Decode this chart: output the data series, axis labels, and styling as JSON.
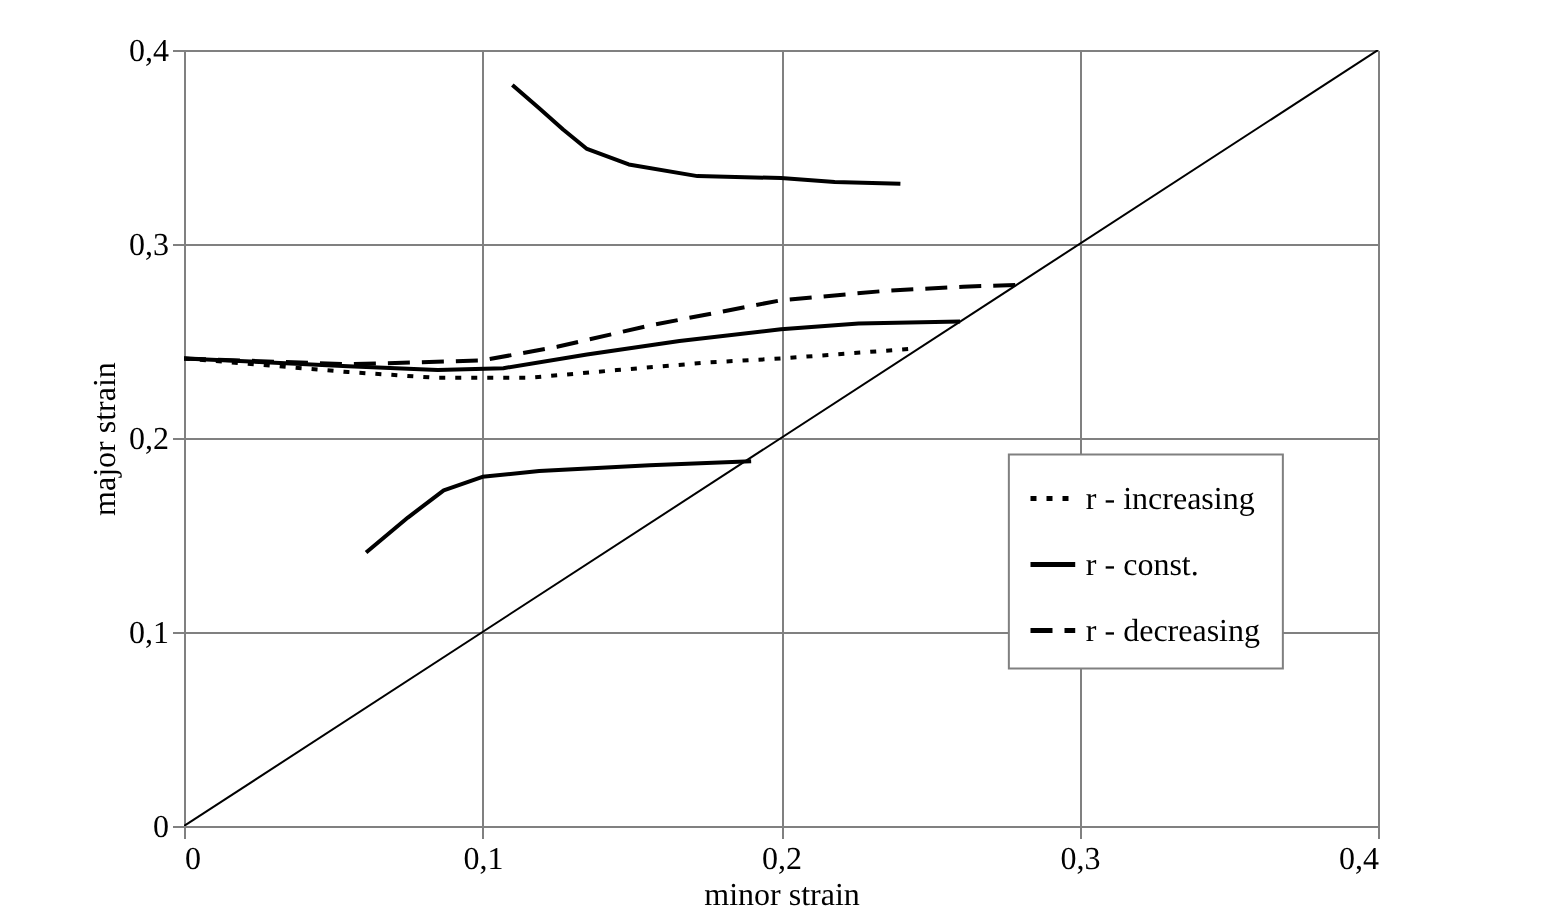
{
  "chart_data": {
    "type": "line",
    "xlabel": "minor strain",
    "ylabel": "major strain",
    "xlim": [
      0,
      0.4
    ],
    "ylim": [
      0,
      0.4
    ],
    "xticks": [
      0,
      {
        "value": 0.1,
        "label": "0,1"
      },
      {
        "value": 0.2,
        "label": "0,2"
      },
      {
        "value": 0.3,
        "label": "0,3"
      },
      {
        "value": 0.4,
        "label": "0,4"
      }
    ],
    "yticks": [
      0,
      {
        "value": 0.1,
        "label": "0,1"
      },
      {
        "value": 0.2,
        "label": "0,2"
      },
      {
        "value": 0.3,
        "label": "0,3"
      },
      {
        "value": 0.4,
        "label": "0,4"
      }
    ],
    "grid": true,
    "legend": "right",
    "series": [
      {
        "name": "r - increasing",
        "color": "#000000",
        "line_style": "dotted",
        "x": [
          0,
          0.055,
          0.085,
          0.115,
          0.145,
          0.176,
          0.2,
          0.244
        ],
        "values": [
          0.241,
          0.234,
          0.231,
          0.231,
          0.235,
          0.239,
          0.241,
          0.246
        ]
      },
      {
        "name": "r - const.",
        "color": "#000000",
        "line_style": "solid",
        "x": [
          0,
          0.055,
          0.085,
          0.107,
          0.135,
          0.166,
          0.2,
          0.226,
          0.26
        ],
        "values": [
          0.241,
          0.237,
          0.235,
          0.236,
          0.243,
          0.25,
          0.256,
          0.259,
          0.26
        ]
      },
      {
        "name": "r - decreasing",
        "color": "#000000",
        "line_style": "dashed",
        "x": [
          0,
          0.055,
          0.1,
          0.125,
          0.156,
          0.2,
          0.236,
          0.261,
          0.28
        ],
        "values": [
          0.241,
          0.238,
          0.24,
          0.247,
          0.258,
          0.271,
          0.276,
          0.278,
          0.279
        ]
      },
      {
        "color": "#000000",
        "line_style": "solid",
        "x": [
          0.11,
          0.119,
          0.127,
          0.135,
          0.149,
          0.172,
          0.2,
          0.218,
          0.24
        ],
        "values": [
          0.382,
          0.37,
          0.359,
          0.349,
          0.341,
          0.335,
          0.334,
          0.332,
          0.331
        ]
      },
      {
        "color": "#000000",
        "line_style": "solid",
        "x": [
          0.061,
          0.075,
          0.087,
          0.1,
          0.119,
          0.156,
          0.19
        ],
        "values": [
          0.141,
          0.159,
          0.173,
          0.18,
          0.183,
          0.186,
          0.188
        ]
      },
      {
        "color": "#000000",
        "line_style": "solid",
        "x": [
          0,
          0.4
        ],
        "values": [
          0,
          0.4
        ]
      }
    ]
  }
}
